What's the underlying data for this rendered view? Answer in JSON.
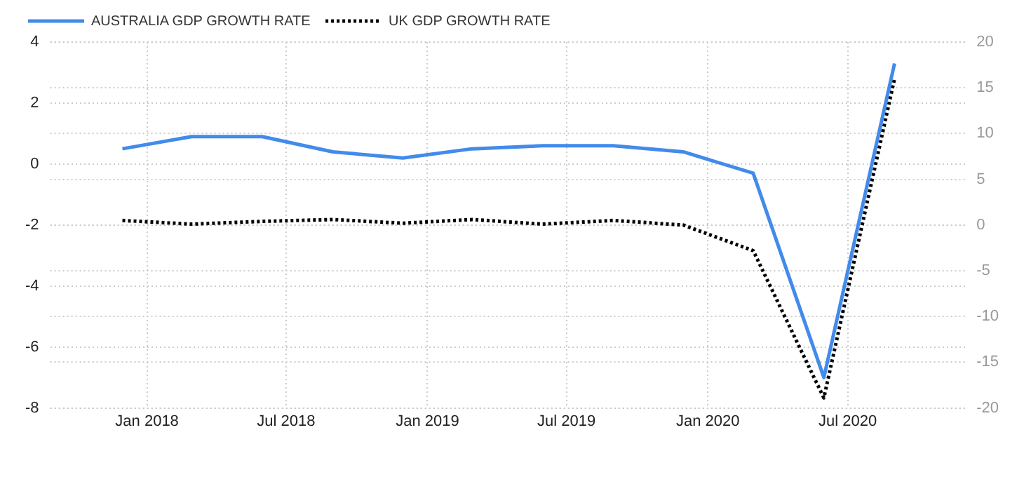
{
  "chart_data": {
    "type": "line",
    "x": [
      "2017-11-30",
      "2018-02-28",
      "2018-05-31",
      "2018-08-31",
      "2018-11-30",
      "2019-02-28",
      "2019-05-31",
      "2019-08-31",
      "2019-11-30",
      "2020-02-29",
      "2020-05-31",
      "2020-08-31"
    ],
    "series": [
      {
        "name": "AUSTRALIA GDP GROWTH RATE",
        "color": "#428bea",
        "line_style": "solid",
        "values": [
          0.5,
          0.9,
          0.9,
          0.4,
          0.2,
          0.5,
          0.6,
          0.6,
          0.4,
          -0.3,
          -7.0,
          3.3
        ]
      },
      {
        "name": "UK GDP GROWTH RATE",
        "color": "#000000",
        "line_style": "dotted",
        "axis": "y2",
        "values": [
          0.5,
          0.1,
          0.4,
          0.6,
          0.2,
          0.6,
          0.1,
          0.5,
          0.0,
          -2.8,
          -18.9,
          16.0
        ]
      }
    ],
    "xlim": [
      "2017-08-28",
      "2020-12-01"
    ],
    "xticks": [
      {
        "value": "2018-01-01",
        "label": "Jan 2018"
      },
      {
        "value": "2018-07-01",
        "label": "Jul 2018"
      },
      {
        "value": "2019-01-01",
        "label": "Jan 2019"
      },
      {
        "value": "2019-07-01",
        "label": "Jul 2019"
      },
      {
        "value": "2020-01-01",
        "label": "Jan 2020"
      },
      {
        "value": "2020-07-01",
        "label": "Jul 2020"
      }
    ],
    "ylim": [
      -8,
      4
    ],
    "yticks": [
      -8,
      -6,
      -4,
      -2,
      0,
      2,
      4
    ],
    "y2lim": [
      -20,
      20
    ],
    "y2ticks": [
      -20,
      -15,
      -10,
      -5,
      0,
      5,
      10,
      15,
      20
    ],
    "grid": true,
    "legend": "top left",
    "marker": "none"
  }
}
